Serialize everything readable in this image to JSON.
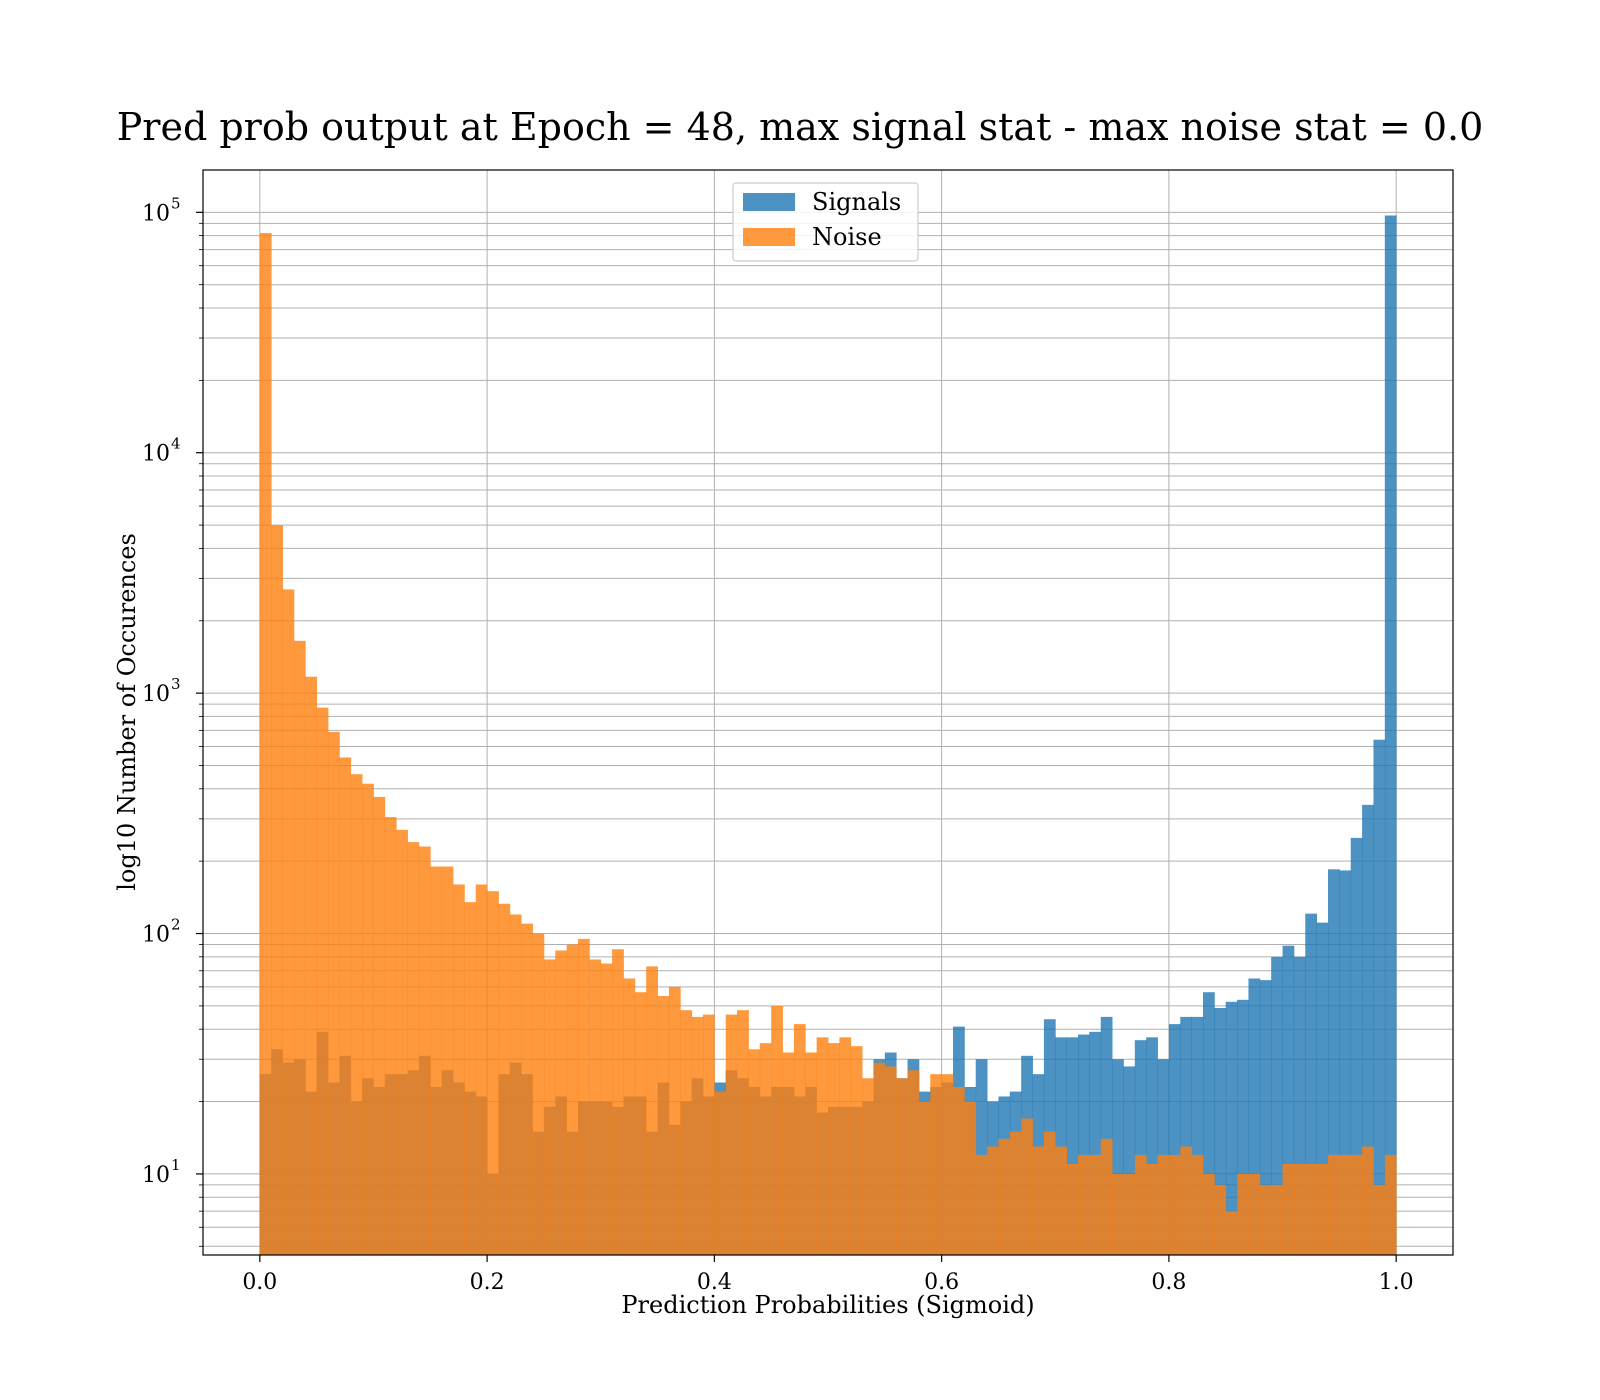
{
  "chart_data": {
    "type": "bar",
    "title": "Pred prob output at Epoch = 48, max signal stat - max noise stat = 0.0",
    "xlabel": "Prediction Probabilities (Sigmoid)",
    "ylabel": "log10 Number of Occurences",
    "xlim": [
      -0.05,
      1.05
    ],
    "ylim": [
      4.6,
      150000
    ],
    "yscale": "log",
    "grid": true,
    "bins": 100,
    "bin_range": [
      0.0,
      1.0
    ],
    "x_ticks": [
      0.0,
      0.2,
      0.4,
      0.6,
      0.8,
      1.0
    ],
    "x_tick_labels": [
      "0.0",
      "0.2",
      "0.4",
      "0.6",
      "0.8",
      "1.0"
    ],
    "y_ticks": [
      10,
      100,
      1000,
      10000,
      100000
    ],
    "y_tick_base": "10",
    "y_tick_exponents": [
      "1",
      "2",
      "3",
      "4",
      "5"
    ],
    "legend_position": "upper center",
    "series": [
      {
        "name": "Signals",
        "color": "#1f77b4",
        "opacity": 0.8,
        "values": [
          26,
          33,
          29,
          30,
          22,
          39,
          24,
          31,
          20,
          25,
          23,
          26,
          26,
          27,
          31,
          23,
          27,
          24,
          22,
          21,
          10,
          26,
          29,
          26,
          15,
          19,
          21,
          15,
          20,
          20,
          20,
          19,
          21,
          21,
          15,
          24,
          16,
          20,
          25,
          21,
          24,
          27,
          25,
          23,
          21,
          23,
          23,
          21,
          23,
          18,
          19,
          19,
          19,
          20,
          30,
          32,
          25,
          30,
          22,
          23,
          24,
          41,
          23,
          30,
          20,
          21,
          22,
          31,
          26,
          44,
          37,
          37,
          38,
          39,
          45,
          30,
          28,
          36,
          37,
          30,
          42,
          45,
          45,
          57,
          49,
          52,
          53,
          65,
          64,
          80,
          89,
          80,
          121,
          111,
          185,
          183,
          250,
          343,
          640,
          97000
        ]
      },
      {
        "name": "Noise",
        "color": "#ff7f0e",
        "opacity": 0.8,
        "values": [
          82000,
          5000,
          2700,
          1650,
          1170,
          870,
          690,
          540,
          460,
          420,
          370,
          305,
          270,
          240,
          230,
          190,
          190,
          160,
          135,
          160,
          150,
          133,
          120,
          110,
          100,
          78,
          85,
          90,
          95,
          78,
          75,
          86,
          65,
          57,
          73,
          55,
          60,
          48,
          45,
          46,
          22,
          46,
          48,
          33,
          35,
          50,
          32,
          42,
          32,
          37,
          35,
          37,
          34,
          25,
          29,
          28,
          25,
          27,
          20,
          26,
          26,
          23,
          20,
          12,
          13,
          14,
          15,
          17,
          13,
          15,
          13,
          11,
          12,
          12,
          14,
          10,
          10,
          12,
          11,
          12,
          12,
          13,
          12,
          10,
          9,
          7,
          10,
          10,
          9,
          9,
          11,
          11,
          11,
          11,
          12,
          12,
          12,
          13,
          9,
          12
        ]
      }
    ]
  }
}
